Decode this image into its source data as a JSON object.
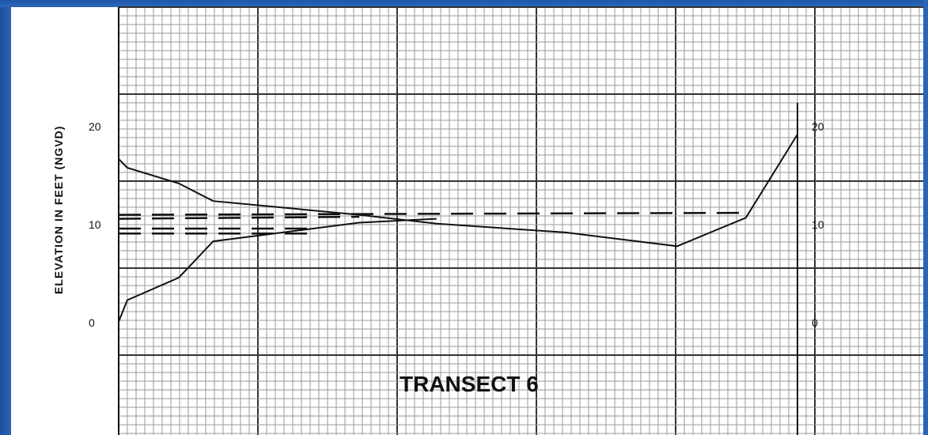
{
  "chart_data": {
    "type": "line",
    "title": "TRANSECT 6",
    "ylabel": "ELEVATION    IN    FEET    (NGVD)",
    "ylim": [
      -5,
      26
    ],
    "left_ticks": [
      "20",
      "10",
      "0"
    ],
    "left_tick_values": [
      20,
      10,
      0
    ],
    "right_ticks": [
      "20",
      "10",
      "0"
    ],
    "right_tick_values": [
      20,
      10,
      0
    ],
    "grid": true,
    "series": [
      {
        "style": "solid",
        "x": [
          0,
          1,
          7,
          11,
          28,
          37,
          52,
          65,
          73,
          79
        ],
        "y": [
          16.7,
          15.8,
          14.2,
          12.4,
          11.0,
          10.1,
          9.2,
          7.8,
          10.7,
          19.2
        ]
      },
      {
        "style": "solid",
        "x": [
          0,
          1,
          7,
          11,
          28,
          37
        ],
        "y": [
          0.1,
          2.3,
          4.6,
          8.3,
          10.2,
          10.6
        ]
      },
      {
        "style": "dashed",
        "x": [
          0,
          73
        ],
        "y": [
          11.0,
          11.2
        ]
      },
      {
        "style": "dashed",
        "x": [
          0,
          28
        ],
        "y": [
          10.6,
          10.8
        ]
      },
      {
        "style": "dashed",
        "x": [
          0,
          22
        ],
        "y": [
          9.6,
          9.6
        ]
      },
      {
        "style": "dashed",
        "x": [
          0,
          22
        ],
        "y": [
          9.1,
          9.1
        ]
      }
    ]
  },
  "colors": {
    "frame": "#2a64b8",
    "grid_minor": "#9a9a9a",
    "grid_major": "#333333",
    "line": "#111111"
  }
}
